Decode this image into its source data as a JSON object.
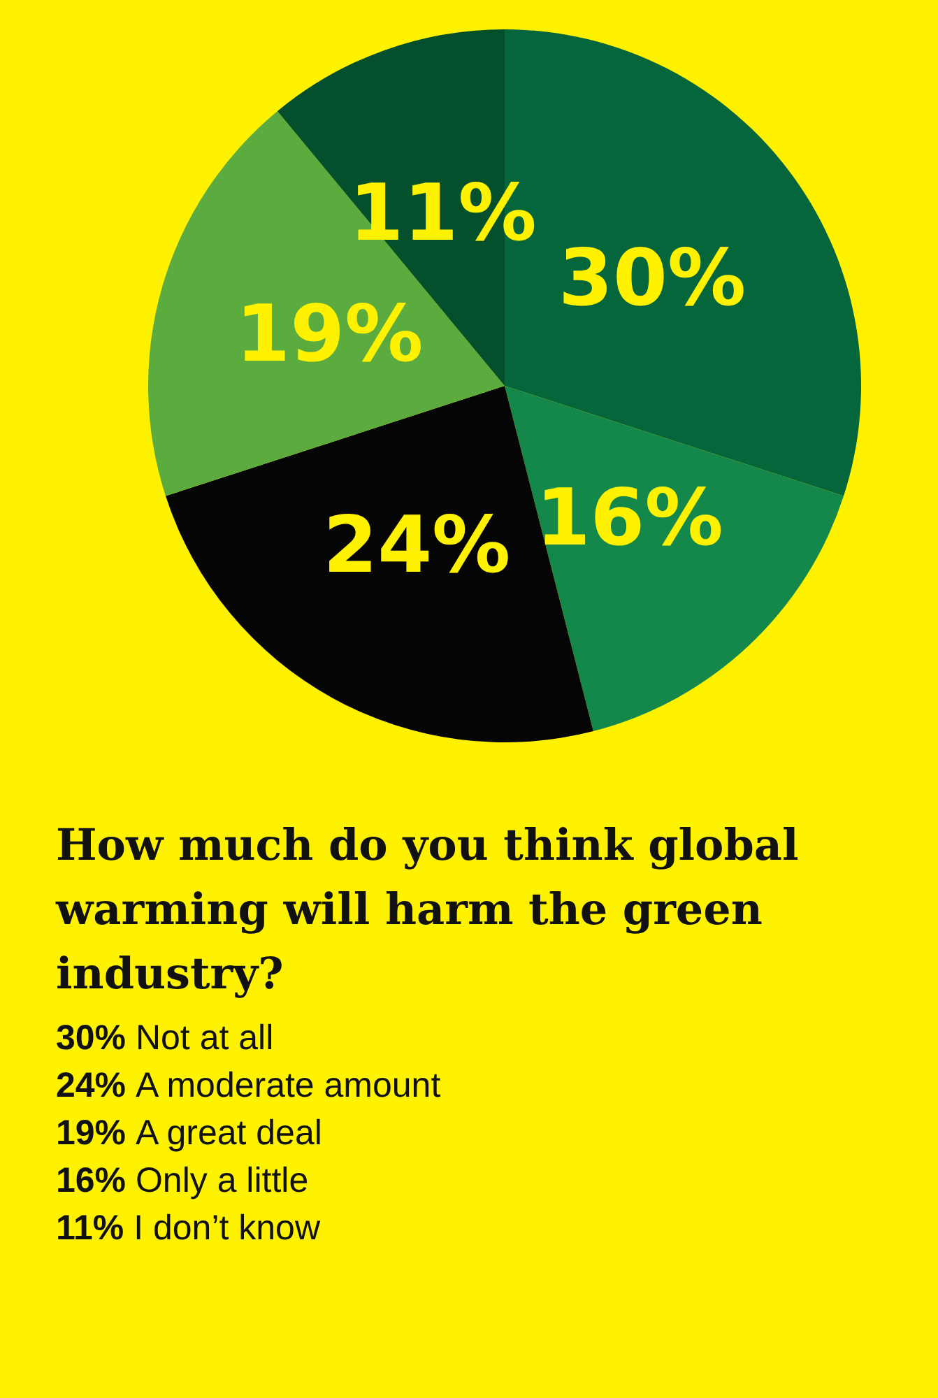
{
  "chart_data": {
    "type": "pie",
    "title": "How much do you think global warming will harm the green industry?",
    "categories": [
      null,
      null,
      null,
      null,
      null
    ],
    "values": [
      30,
      16,
      24,
      19,
      11
    ],
    "value_labels": [
      "30%",
      "16%",
      "24%",
      "19%",
      "11%"
    ],
    "colors": [
      "#06663b",
      "#14874a",
      "#050505",
      "#5cab3e",
      "#044f2c"
    ],
    "annotations": [
      "30% Not at all",
      "24% A moderate amount",
      "19% A great deal",
      "16% Only a little",
      "11% I don’t know"
    ]
  }
}
